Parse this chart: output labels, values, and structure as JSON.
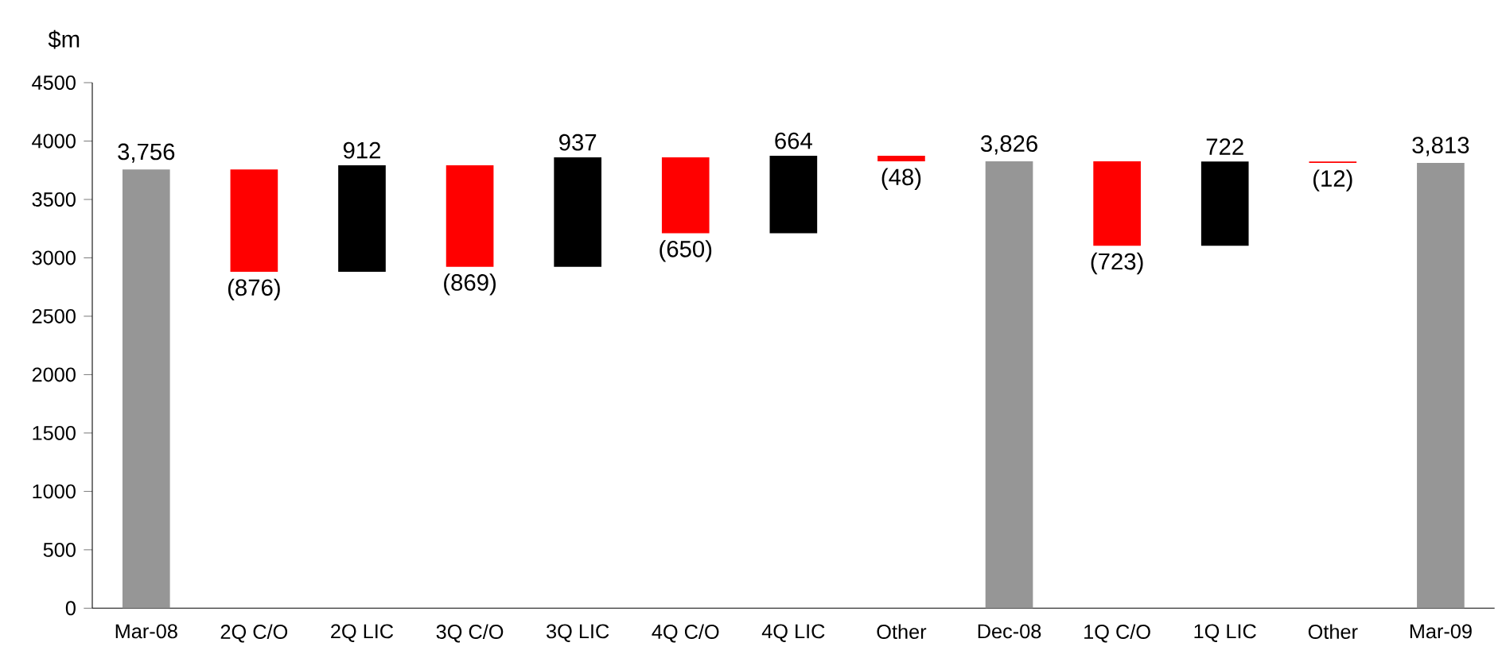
{
  "chart_data": {
    "type": "bar",
    "ylabel": "$m",
    "categories": [
      "Mar-08",
      "2Q C/O",
      "2Q LIC",
      "3Q C/O",
      "3Q LIC",
      "4Q C/O",
      "4Q LIC",
      "Other",
      "Dec-08",
      "1Q C/O",
      "1Q LIC",
      "Other",
      "Mar-09"
    ],
    "values": [
      3756,
      -876,
      912,
      -869,
      937,
      -650,
      664,
      -48,
      3826,
      -723,
      722,
      -12,
      3813
    ],
    "base": [
      0,
      3756,
      2880,
      3792,
      2923,
      3860,
      3210,
      3874,
      0,
      3826,
      3103,
      3825,
      0
    ],
    "colors": [
      "#969696",
      "#ff0000",
      "#000000",
      "#ff0000",
      "#000000",
      "#ff0000",
      "#000000",
      "#ff0000",
      "#969696",
      "#ff0000",
      "#000000",
      "#ff0000",
      "#969696"
    ],
    "value_labels": [
      "3,756",
      "(876)",
      "912",
      "(869)",
      "937",
      "(650)",
      "664",
      "(48)",
      "3,826",
      "(723)",
      "722",
      "(12)",
      "3,813"
    ],
    "ylim": [
      0,
      4500
    ],
    "yticks": [
      0,
      500,
      1000,
      1500,
      2000,
      2500,
      3000,
      3500,
      4000,
      4500
    ]
  }
}
